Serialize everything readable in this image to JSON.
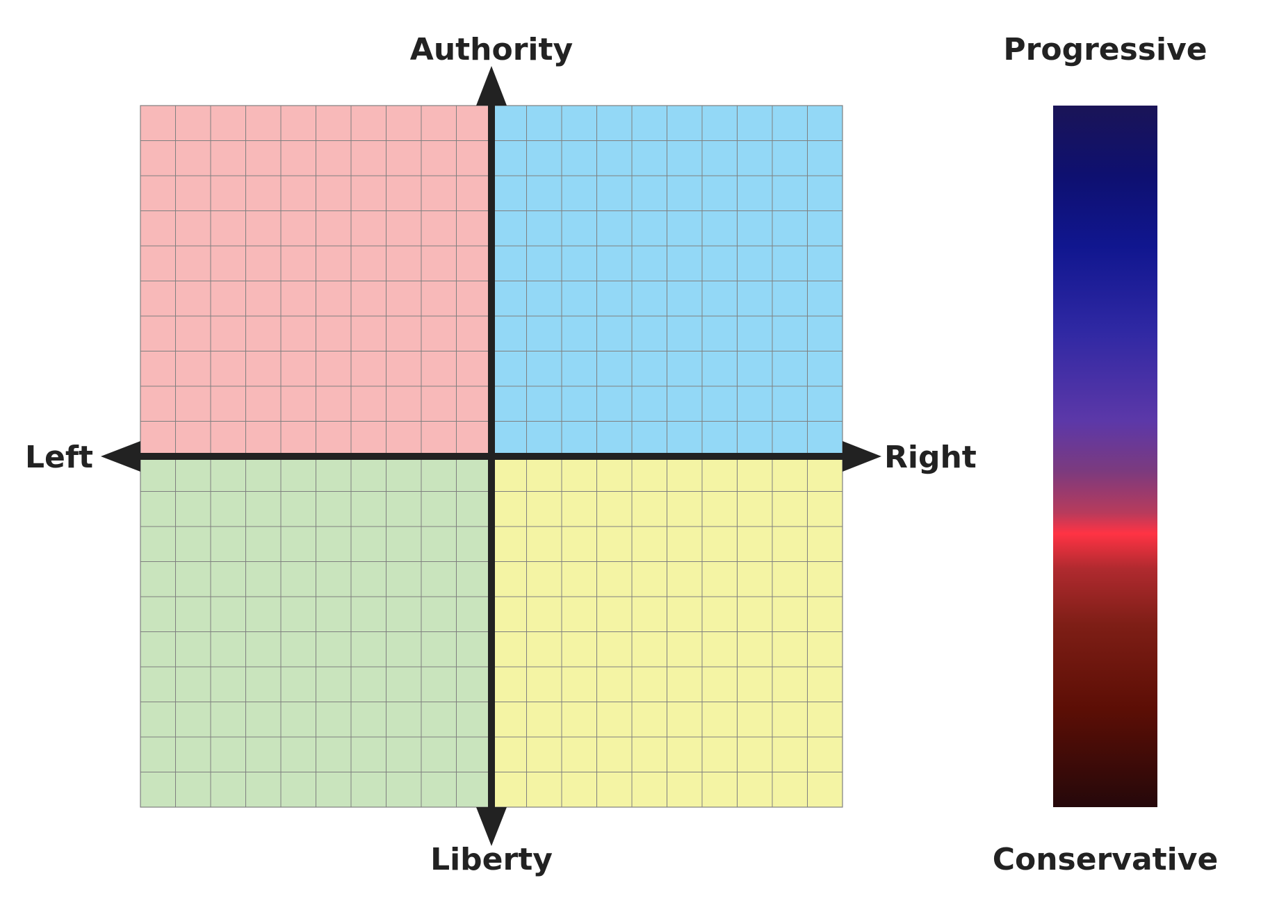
{
  "compass": {
    "axis_labels": {
      "top": "Authority",
      "bottom": "Liberty",
      "left": "Left",
      "right": "Right"
    },
    "grid": {
      "columns": 20,
      "rows": 20
    },
    "quadrant_colors": {
      "authoritarian_left": "#f8b9b9",
      "authoritarian_right": "#93d8f6",
      "libertarian_left": "#c9e4bd",
      "libertarian_right": "#f4f4a4"
    },
    "grid_line_color": "#7f7f7f",
    "axis_color": "#222222"
  },
  "scale": {
    "top_label": "Progressive",
    "bottom_label": "Conservative",
    "gradient_stops": [
      {
        "offset": 0.0,
        "color": "#1a1457"
      },
      {
        "offset": 0.1,
        "color": "#0e1070"
      },
      {
        "offset": 0.2,
        "color": "#10168f"
      },
      {
        "offset": 0.32,
        "color": "#2f28a3"
      },
      {
        "offset": 0.45,
        "color": "#5c38a8"
      },
      {
        "offset": 0.52,
        "color": "#7b3a7f"
      },
      {
        "offset": 0.58,
        "color": "#b73b5c"
      },
      {
        "offset": 0.61,
        "color": "#ff3344"
      },
      {
        "offset": 0.66,
        "color": "#b02a2f"
      },
      {
        "offset": 0.74,
        "color": "#7e1e16"
      },
      {
        "offset": 0.86,
        "color": "#5c0e05"
      },
      {
        "offset": 1.0,
        "color": "#25080a"
      }
    ]
  }
}
